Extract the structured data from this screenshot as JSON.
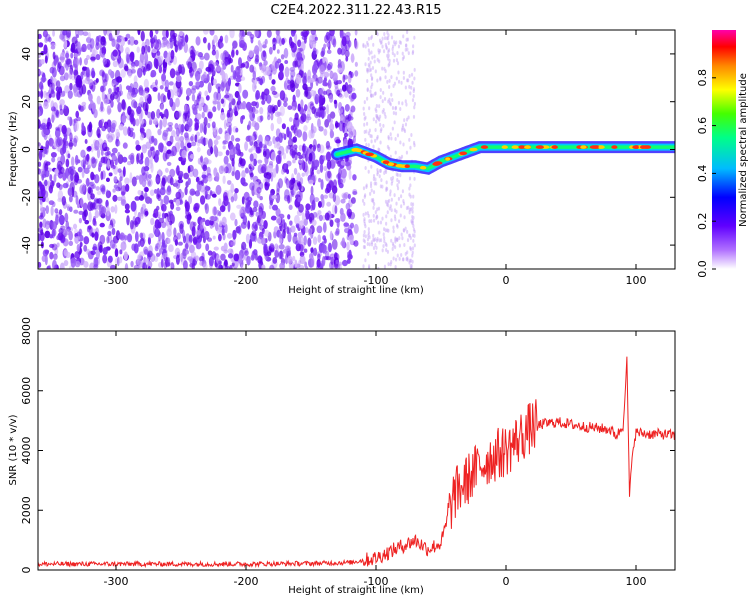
{
  "title": "C2E4.2022.311.22.43.R15",
  "chart_data": [
    {
      "type": "heatmap",
      "title": "C2E4.2022.311.22.43.R15",
      "xlabel": "Height of straight line (km)",
      "ylabel": "Frequency (Hz)",
      "xlim": [
        -360,
        130
      ],
      "ylim": [
        -50,
        50
      ],
      "xticks": [
        -300,
        -200,
        -100,
        0,
        100
      ],
      "yticks": [
        -40,
        -20,
        0,
        20,
        40
      ],
      "colorbar": {
        "label": "Normalized spectral amplitude",
        "range": [
          0,
          1
        ],
        "ticks": [
          "0.0",
          "0.2",
          "0.4",
          "0.6",
          "0.8"
        ],
        "colormap": [
          "#ffffff",
          "#8000ff",
          "#0000ff",
          "#00ffff",
          "#00ff00",
          "#ffff00",
          "#ff8000",
          "#ff0000",
          "#ff00ff"
        ]
      },
      "ridge_frequency_hz": {
        "x": [
          -130,
          -115,
          -100,
          -90,
          -80,
          -70,
          -60,
          -50,
          -40,
          -30,
          -20,
          0,
          50,
          100,
          130
        ],
        "y": [
          -2,
          0,
          -3,
          -6,
          -7,
          -7,
          -8,
          -5,
          -3,
          -1,
          1,
          1,
          1,
          1,
          1
        ]
      },
      "grid": false
    },
    {
      "type": "line",
      "xlabel": "Height of straight line (km)",
      "ylabel": "SNR (10 * v/v)",
      "xlim": [
        -360,
        130
      ],
      "ylim": [
        0,
        8000
      ],
      "xticks": [
        -300,
        -200,
        -100,
        0,
        100
      ],
      "yticks": [
        0,
        2000,
        4000,
        6000,
        8000
      ],
      "series": [
        {
          "color": "#ee2222",
          "x": [
            -360,
            -300,
            -250,
            -200,
            -150,
            -120,
            -100,
            -90,
            -80,
            -70,
            -60,
            -50,
            -40,
            -30,
            -20,
            -10,
            0,
            10,
            20,
            30,
            40,
            60,
            80,
            85,
            90,
            93,
            95,
            98,
            100,
            110,
            120,
            130
          ],
          "y": [
            200,
            200,
            200,
            200,
            220,
            250,
            400,
            600,
            800,
            1000,
            700,
            900,
            2500,
            3000,
            3500,
            3800,
            4000,
            4400,
            4800,
            4900,
            4950,
            4800,
            4700,
            4500,
            4800,
            7000,
            2500,
            4200,
            4600,
            4550,
            4550,
            4500
          ]
        }
      ],
      "grid": false
    }
  ]
}
